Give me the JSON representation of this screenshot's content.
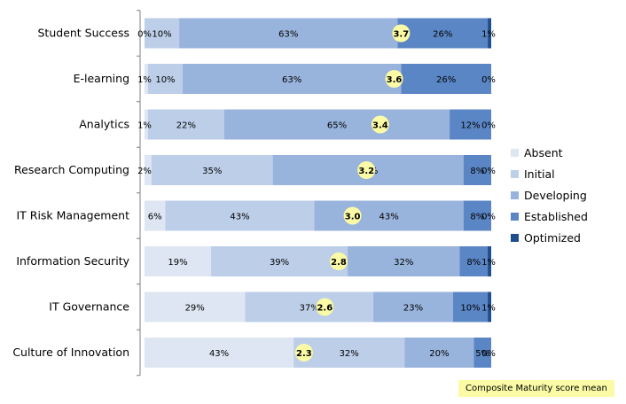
{
  "chart_data": {
    "type": "bar",
    "orientation": "horizontal",
    "stacked": true,
    "categories": [
      "Student Success",
      "E-learning",
      "Analytics",
      "Research Computing",
      "IT Risk Management",
      "Information Security",
      "IT Governance",
      "Culture of Innovation"
    ],
    "series": [
      {
        "name": "Absent",
        "values": [
          0,
          1,
          1,
          2,
          6,
          19,
          29,
          43
        ],
        "labels": [
          "0%",
          "1%",
          "1%",
          "2%",
          "6%",
          "19%",
          "29%",
          "43%"
        ],
        "color": "#dde6f2"
      },
      {
        "name": "Initial",
        "values": [
          10,
          10,
          22,
          35,
          43,
          39,
          37,
          32
        ],
        "labels": [
          "10%",
          "10%",
          "22%",
          "35%",
          "43%",
          "39%",
          "37%",
          "32%"
        ],
        "color": "#bccee8"
      },
      {
        "name": "Developing",
        "values": [
          63,
          63,
          65,
          55,
          43,
          32,
          23,
          20
        ],
        "labels": [
          "63%",
          "63%",
          "65%",
          "55%",
          "43%",
          "32%",
          "23%",
          "20%"
        ],
        "color": "#98b3dc"
      },
      {
        "name": "Established",
        "values": [
          26,
          26,
          12,
          8,
          8,
          8,
          10,
          5
        ],
        "labels": [
          "26%",
          "26%",
          "12%",
          "8%",
          "8%",
          "8%",
          "10%",
          "5%"
        ],
        "color": "#5b86c5"
      },
      {
        "name": "Optimized",
        "values": [
          1,
          0,
          0,
          0,
          0,
          1,
          1,
          0
        ],
        "labels": [
          "1%",
          "0%",
          "0%",
          "0%",
          "0%",
          "1%",
          "1%",
          "0%"
        ],
        "color": "#1f4e8c"
      }
    ],
    "mean_scores": [
      3.7,
      3.6,
      3.4,
      3.2,
      3.0,
      2.8,
      2.6,
      2.3
    ],
    "mean_labels": [
      "3.7",
      "3.6",
      "3.4",
      "3.2",
      "3.0",
      "2.8",
      "2.6",
      "2.3"
    ],
    "mean_scale": [
      0,
      5
    ],
    "mean_color": "#fbfba6",
    "xlim": [
      0,
      100
    ],
    "legend_position": "right",
    "grid": false
  },
  "note": {
    "text": "Composite Maturity score mean"
  }
}
